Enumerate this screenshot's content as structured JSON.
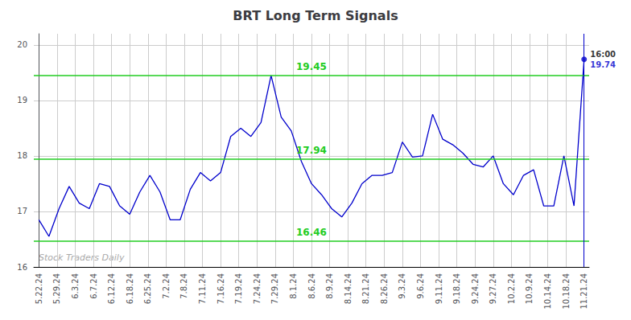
{
  "chart_data": {
    "type": "line",
    "title": "BRT Long Term Signals",
    "x": [
      0,
      1,
      2,
      3,
      4,
      5,
      6,
      7,
      8,
      9,
      10,
      11,
      12,
      13,
      14,
      15,
      16,
      17,
      18,
      19,
      20,
      21,
      22,
      23,
      24,
      25,
      26,
      27,
      28,
      29,
      30,
      31,
      32,
      33,
      34,
      35,
      36,
      37,
      38,
      39,
      40,
      41,
      42,
      43,
      44,
      45,
      46,
      47,
      48,
      49,
      50,
      51,
      52,
      53,
      54
    ],
    "values": [
      16.85,
      16.55,
      17.05,
      17.45,
      17.15,
      17.05,
      17.5,
      17.45,
      17.1,
      16.95,
      17.35,
      17.65,
      17.35,
      16.85,
      16.85,
      17.4,
      17.7,
      17.55,
      17.7,
      18.35,
      18.5,
      18.35,
      18.6,
      19.45,
      18.7,
      18.45,
      17.9,
      17.5,
      17.3,
      17.05,
      16.9,
      17.15,
      17.5,
      17.65,
      17.65,
      17.7,
      18.25,
      17.98,
      18.0,
      18.75,
      18.3,
      18.2,
      18.05,
      17.85,
      17.8,
      18.0,
      17.5,
      17.3,
      17.65,
      17.75,
      17.1,
      17.1,
      18.0,
      17.1,
      19.74
    ],
    "color": "#0000cc",
    "xlim": [
      -0.5,
      54.5
    ],
    "xticks": [
      {
        "value": 0,
        "label": "5.22.24"
      },
      {
        "value": 1.8,
        "label": "5.29.24"
      },
      {
        "value": 3.6,
        "label": "6.3.24"
      },
      {
        "value": 5.4,
        "label": "6.7.24"
      },
      {
        "value": 7.2,
        "label": "6.12.24"
      },
      {
        "value": 9,
        "label": "6.18.24"
      },
      {
        "value": 10.8,
        "label": "6.25.24"
      },
      {
        "value": 12.6,
        "label": "7.2.24"
      },
      {
        "value": 14.4,
        "label": "7.8.24"
      },
      {
        "value": 16.2,
        "label": "7.11.24"
      },
      {
        "value": 18,
        "label": "7.16.24"
      },
      {
        "value": 19.8,
        "label": "7.19.24"
      },
      {
        "value": 21.6,
        "label": "7.24.24"
      },
      {
        "value": 23.4,
        "label": "7.29.24"
      },
      {
        "value": 25.2,
        "label": "8.1.24"
      },
      {
        "value": 27,
        "label": "8.6.24"
      },
      {
        "value": 28.8,
        "label": "8.9.24"
      },
      {
        "value": 30.6,
        "label": "8.14.24"
      },
      {
        "value": 32.4,
        "label": "8.21.24"
      },
      {
        "value": 34.2,
        "label": "8.26.24"
      },
      {
        "value": 36,
        "label": "9.3.24"
      },
      {
        "value": 37.8,
        "label": "9.6.24"
      },
      {
        "value": 39.6,
        "label": "9.11.24"
      },
      {
        "value": 41.4,
        "label": "9.18.24"
      },
      {
        "value": 43.2,
        "label": "9.24.24"
      },
      {
        "value": 45,
        "label": "9.27.24"
      },
      {
        "value": 46.8,
        "label": "10.2.24"
      },
      {
        "value": 48.6,
        "label": "10.9.24"
      },
      {
        "value": 50.4,
        "label": "10.14.24"
      },
      {
        "value": 52.2,
        "label": "10.18.24"
      },
      {
        "value": 54,
        "label": "11.21.24"
      }
    ],
    "ylim": [
      16.0,
      20.2
    ],
    "yticks": [
      16,
      17,
      18,
      19,
      20
    ],
    "grid": true,
    "hlines": [
      {
        "value": 19.45,
        "label": "19.45",
        "color": "#22cc22"
      },
      {
        "value": 17.94,
        "label": "17.94",
        "color": "#22cc22"
      },
      {
        "value": 16.46,
        "label": "16.46",
        "color": "#22cc22"
      }
    ],
    "annotations": [
      {
        "text": "16:00"
      },
      {
        "text": "19.74",
        "color": "#0000cc"
      }
    ],
    "watermark": "Stock Traders Daily"
  }
}
